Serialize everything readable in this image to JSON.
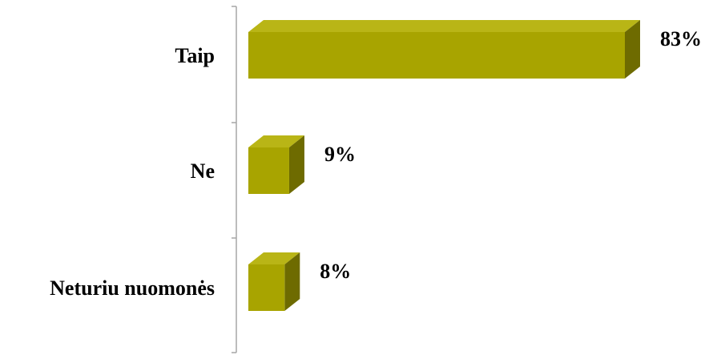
{
  "chart_data": {
    "type": "bar",
    "orientation": "horizontal",
    "three_d": true,
    "categories": [
      "Taip",
      "Ne",
      "Neturiu nuomonės"
    ],
    "values": [
      83,
      9,
      8
    ],
    "value_labels": [
      "83%",
      "9%",
      "8%"
    ],
    "unit": "%",
    "xlim": [
      0,
      100
    ],
    "grid": false,
    "legend": "none",
    "colors": {
      "front": "#a8a400",
      "top": "#b9b516",
      "side": "#6e6b00",
      "axis": "#a6a6a6"
    }
  }
}
